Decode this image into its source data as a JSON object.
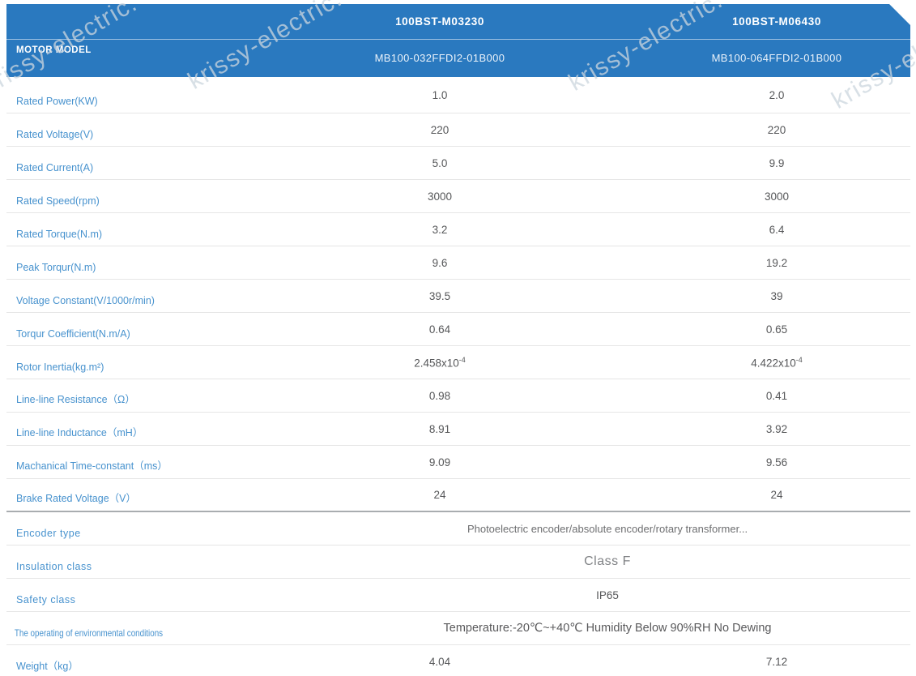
{
  "watermark": {
    "text": "krissy-electric."
  },
  "header": {
    "row_label": "MOTOR MODEL",
    "col1": {
      "series": "100BST-M03230",
      "model": "MB100-032FFDI2-01B000"
    },
    "col2": {
      "series": "100BST-M06430",
      "model": "MB100-064FFDI2-01B000"
    }
  },
  "rows": [
    {
      "label": "Rated Power(KW)",
      "v1": "1.0",
      "v2": "2.0"
    },
    {
      "label": "Rated Voltage(V)",
      "v1": "220",
      "v2": "220"
    },
    {
      "label": "Rated Current(A)",
      "v1": "5.0",
      "v2": "9.9"
    },
    {
      "label": "Rated Speed(rpm)",
      "v1": "3000",
      "v2": "3000"
    },
    {
      "label": "Rated Torque(N.m)",
      "v1": "3.2",
      "v2": "6.4"
    },
    {
      "label": "Peak Torqur(N.m)",
      "v1": "9.6",
      "v2": "19.2"
    },
    {
      "label": "Voltage Constant(V/1000r/min)",
      "v1": "39.5",
      "v2": "39"
    },
    {
      "label": "Torqur Coefficient(N.m/A)",
      "v1": "0.64",
      "v2": "0.65"
    },
    {
      "label": "Rotor Inertia(kg.m²)",
      "v1_base": "2.458x10",
      "v1_sup": "-4",
      "v2_base": "4.422x10",
      "v2_sup": "-4"
    },
    {
      "label": "Line-line Resistance（Ω）",
      "v1": "0.98",
      "v2": "0.41"
    },
    {
      "label": "Line-line Inductance（mH）",
      "v1": "8.91",
      "v2": "3.92"
    },
    {
      "label": "Machanical Time-constant（ms）",
      "v1": "9.09",
      "v2": "9.56"
    },
    {
      "label": "Brake Rated Voltage（V）",
      "v1": "24",
      "v2": "24"
    },
    {
      "label": "Encoder type",
      "span": "Photoelectric encoder/absolute encoder/rotary transformer..."
    },
    {
      "label": "Insulation class",
      "span": "Class F"
    },
    {
      "label": "Safety class",
      "span": "IP65"
    },
    {
      "label": "The operating of environmental conditions",
      "span": "Temperature:-20℃~+40℃  Humidity Below 90%RH No Dewing"
    },
    {
      "label": "Weight（kg）",
      "v1": "4.04",
      "v2": "7.12"
    }
  ]
}
